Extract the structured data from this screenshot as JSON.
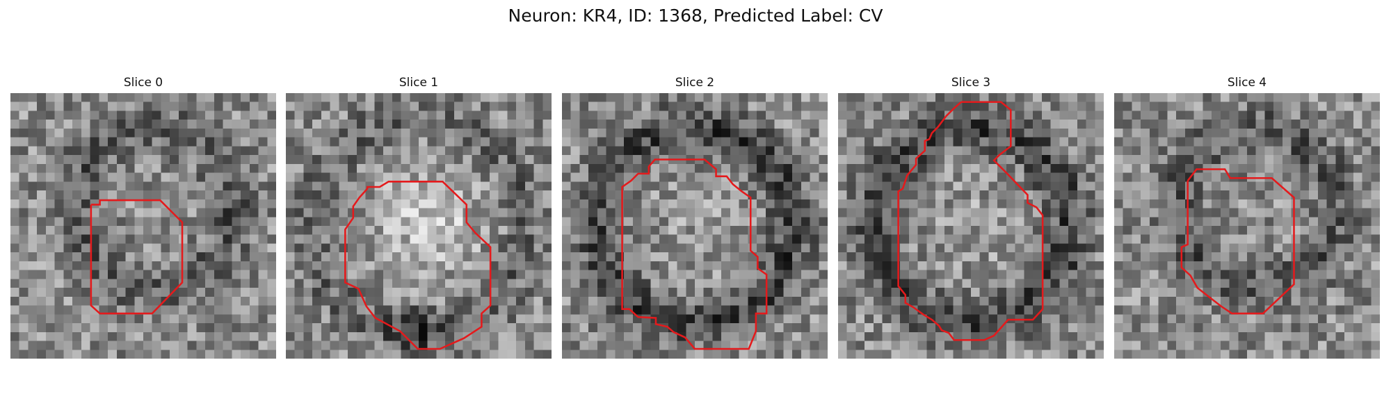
{
  "figure": {
    "title": "Neuron: KR4, ID: 1368, Predicted Label: CV"
  },
  "panels": [
    {
      "title": "Slice 0",
      "seed": 11,
      "pattern": "ring-right",
      "contour_color": "#e41a1c"
    },
    {
      "title": "Slice 1",
      "seed": 23,
      "pattern": "bright-blob",
      "contour_color": "#e41a1c"
    },
    {
      "title": "Slice 2",
      "seed": 37,
      "pattern": "dark-ring",
      "contour_color": "#e41a1c"
    },
    {
      "title": "Slice 3",
      "seed": 53,
      "pattern": "dark-ring",
      "contour_color": "#e41a1c"
    },
    {
      "title": "Slice 4",
      "seed": 71,
      "pattern": "ring-right",
      "contour_color": "#e41a1c"
    }
  ]
}
